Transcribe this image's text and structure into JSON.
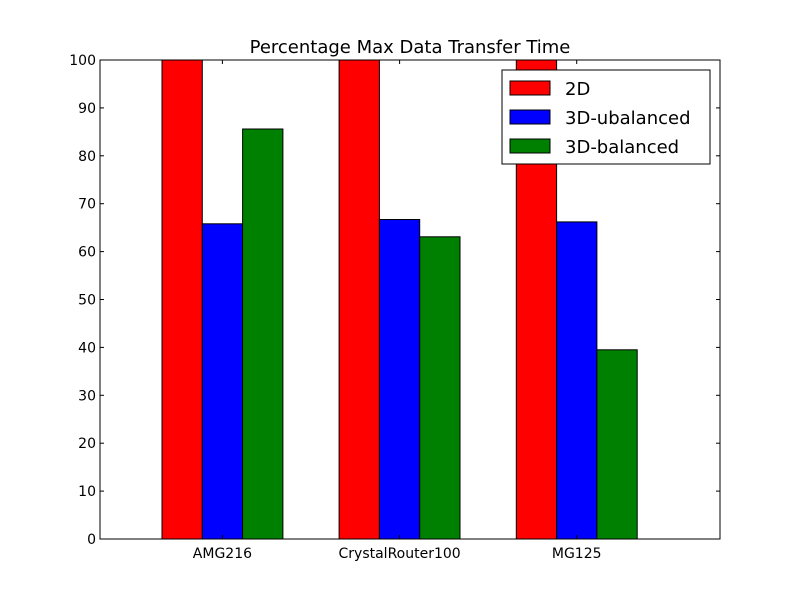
{
  "chart_data": {
    "type": "bar",
    "title": "Percentage Max Data Transfer Time",
    "xlabel": "",
    "ylabel": "",
    "categories": [
      "AMG216",
      "CrystalRouter100",
      "MG125"
    ],
    "series": [
      {
        "name": "2D",
        "color": "#ff0000",
        "values": [
          100,
          100,
          100
        ]
      },
      {
        "name": "3D-ubalanced",
        "color": "#0000ff",
        "values": [
          65.8,
          66.7,
          66.2
        ]
      },
      {
        "name": "3D-balanced",
        "color": "#008000",
        "values": [
          85.6,
          63.1,
          39.5
        ]
      }
    ],
    "ylim": [
      0,
      100
    ],
    "yticks": [
      "0",
      "10",
      "20",
      "30",
      "40",
      "50",
      "60",
      "70",
      "80",
      "90",
      "100"
    ],
    "grid": false,
    "legend_position": "top-right"
  }
}
